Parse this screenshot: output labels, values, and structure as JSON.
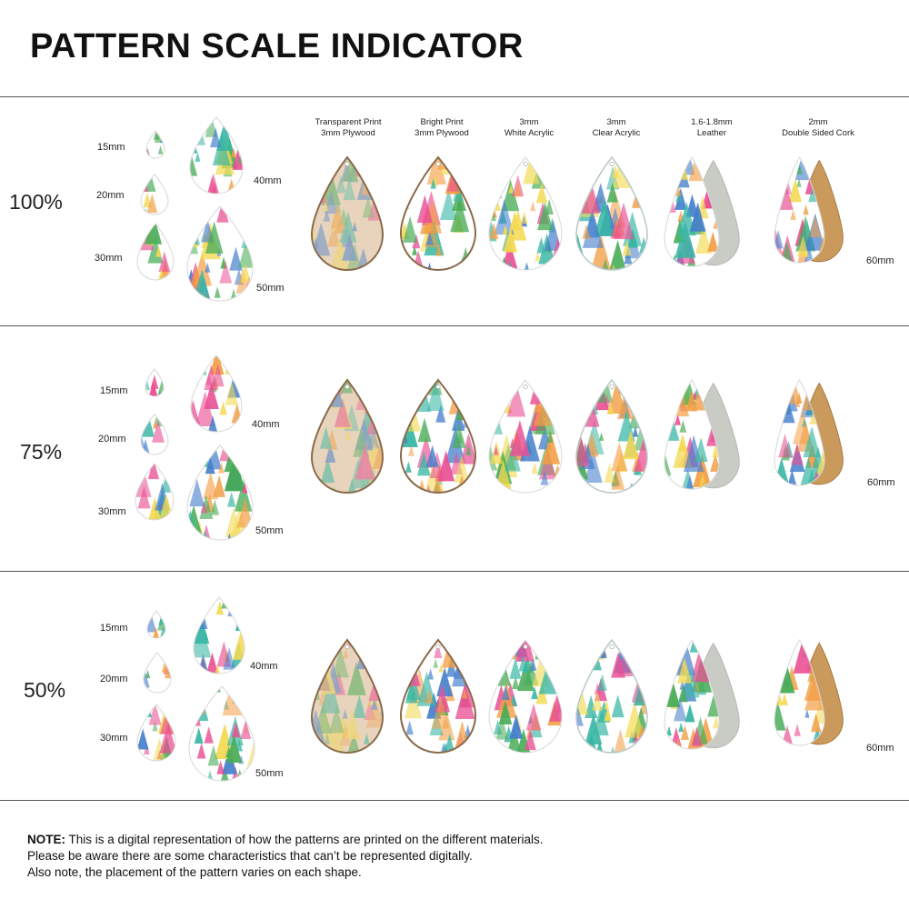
{
  "title": "PATTERN SCALE INDICATOR",
  "materials": [
    {
      "line1": "Transparent Print",
      "line2": "3mm Plywood"
    },
    {
      "line1": "Bright Print",
      "line2": "3mm Plywood"
    },
    {
      "line1": "3mm",
      "line2": "White Acrylic"
    },
    {
      "line1": "3mm",
      "line2": "Clear Acrylic"
    },
    {
      "line1": "1.6-1.8mm",
      "line2": "Leather"
    },
    {
      "line1": "2mm",
      "line2": "Double Sided Cork"
    }
  ],
  "sizes": [
    "15mm",
    "20mm",
    "30mm",
    "40mm",
    "50mm",
    "60mm"
  ],
  "scales": [
    "100%",
    "75%",
    "50%"
  ],
  "note": {
    "label": "NOTE:",
    "line1": " This is a digital representation of how the patterns are printed on the different materials.",
    "line2": "Please be aware there are some characteristics that can’t be represented digitally.",
    "line3": "Also note, the placement of the pattern varies on each shape."
  },
  "colors": {
    "pink": "#e8488f",
    "teal": "#2fb3a0",
    "green": "#3fa84f",
    "blue": "#3b78c9",
    "yellow": "#f2d84a",
    "orange": "#f29a3c",
    "leather_back": "#c9ccc4",
    "cork_back": "#c99a5c",
    "plywood_edge": "#8a6a4a"
  }
}
